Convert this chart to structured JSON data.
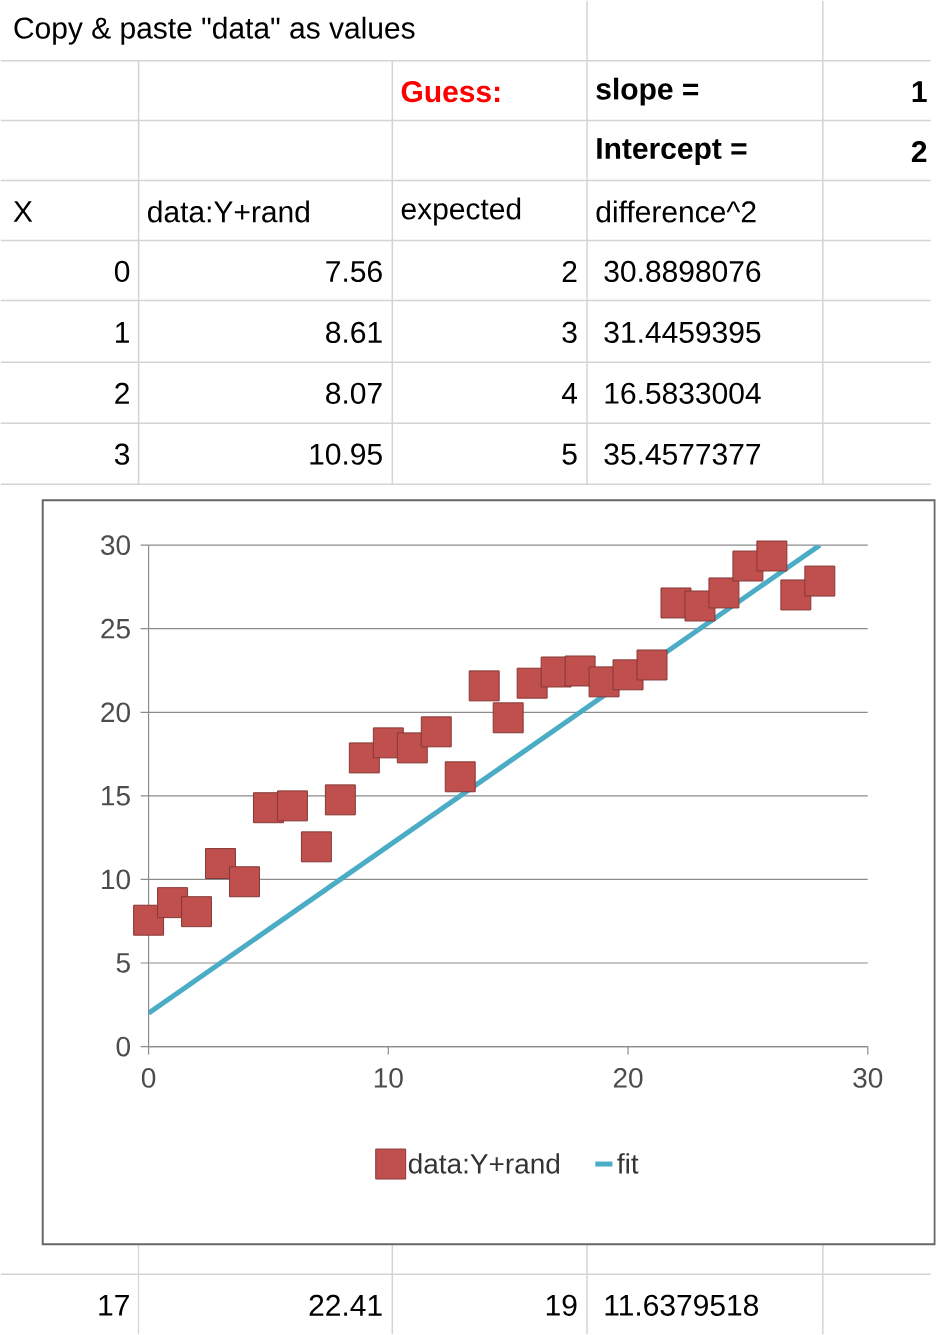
{
  "chart_data": [
    {
      "type": "other",
      "annotations": [
        "Copy & paste \"data\" as values",
        "Guess:",
        "slope =",
        "1",
        "Intercept =",
        "2",
        "X",
        "data:Y+rand",
        "expected",
        "difference^2",
        "0",
        "7.56",
        "2",
        "30.8898076",
        "1",
        "8.61",
        "3",
        "31.4459395",
        "2",
        "8.07",
        "4",
        "16.5833004",
        "3",
        "10.95",
        "5",
        "35.4577377",
        "17",
        "22.41",
        "19",
        "11.6379518"
      ]
    },
    {
      "type": "scatter",
      "xlim": [
        0,
        30
      ],
      "xticks": [
        0,
        10,
        20,
        30
      ],
      "ylim": [
        0,
        30
      ],
      "yticks": [
        0,
        5,
        10,
        15,
        20,
        25,
        30
      ],
      "grid": "y",
      "legend": "bottom",
      "series": [
        {
          "name": "data:Y+rand",
          "type": "scatter",
          "marker": "square",
          "color": "#c0504d",
          "x": [
            0,
            1,
            2,
            3,
            4,
            5,
            6,
            7,
            8,
            9,
            10,
            11,
            12,
            13,
            14,
            15,
            16,
            17,
            18,
            19,
            20,
            21,
            22,
            23,
            24,
            25,
            26,
            27,
            28
          ],
          "values": [
            7.56,
            8.61,
            8.07,
            10.95,
            9.86,
            14.29,
            14.4,
            11.95,
            14.76,
            17.27,
            18.17,
            17.87,
            18.83,
            16.14,
            21.58,
            19.67,
            21.74,
            22.41,
            22.47,
            21.82,
            22.24,
            22.83,
            26.54,
            26.36,
            27.14,
            28.75,
            29.35,
            27.02,
            27.85
          ]
        },
        {
          "name": "fit",
          "type": "line",
          "marker": "none",
          "color": "#4bacc6",
          "x": [
            0,
            28
          ],
          "values": [
            2,
            30
          ]
        }
      ]
    }
  ]
}
